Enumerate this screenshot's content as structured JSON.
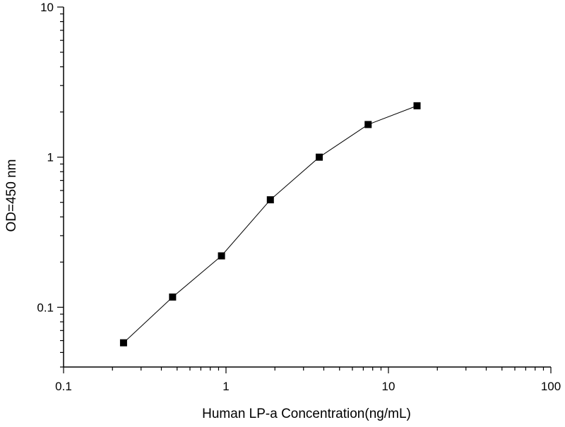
{
  "chart_data": {
    "type": "scatter",
    "title": "",
    "xlabel": "Human LP-a Concentration(ng/mL)",
    "ylabel": "OD=450 nm",
    "x_scale": "log",
    "y_scale": "log",
    "xlim": [
      0.1,
      100
    ],
    "ylim": [
      0.04,
      10
    ],
    "x_ticks": [
      {
        "value": 0.1,
        "label": "0.1"
      },
      {
        "value": 1,
        "label": "1"
      },
      {
        "value": 10,
        "label": "10"
      },
      {
        "value": 100,
        "label": "100"
      }
    ],
    "y_ticks": [
      {
        "value": 0.1,
        "label": "0.1"
      },
      {
        "value": 1,
        "label": "1"
      },
      {
        "value": 10,
        "label": "10"
      }
    ],
    "grid": false,
    "legend": "none",
    "connect_points": true,
    "marker": "square",
    "series": [
      {
        "x": [
          0.234,
          0.469,
          0.938,
          1.875,
          3.75,
          7.5,
          15
        ],
        "y": [
          0.058,
          0.117,
          0.22,
          0.52,
          1.0,
          1.65,
          2.2
        ]
      }
    ],
    "colors": {
      "axis": "#000000",
      "line": "#000000",
      "marker": "#000000"
    }
  }
}
